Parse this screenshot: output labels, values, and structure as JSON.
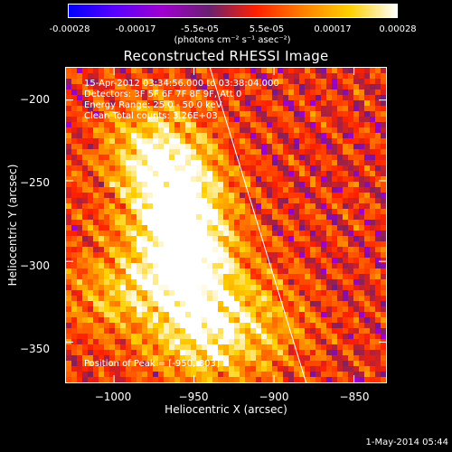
{
  "colorbar": {
    "ticks": [
      "-0.00028",
      "-0.00017",
      "-5.5e-05",
      "5.5e-05",
      "0.00017",
      "0.00028"
    ],
    "unit_label": "(photons cm⁻² s⁻¹ asec⁻²)",
    "colormap": [
      "#0000ff",
      "#5a00ff",
      "#a000d0",
      "#6a2070",
      "#ff2000",
      "#ff8000",
      "#ffd000",
      "#ffffff"
    ]
  },
  "annotations": {
    "time_range": "15-Apr-2012 03:34:56.000 to 03:38:04.000",
    "detectors": "Detectors: 3F 5F 6F 7F 8F 9F, Att 0",
    "energy_range": "Energy Range: 25.0 - 50.0 keV",
    "clean_counts": "Clean     Total counts: 3.26E+03",
    "peak_position": "Position of Peak = [-950,-303]"
  },
  "timestamp": "1-May-2014 05:44",
  "chart_data": {
    "type": "heatmap",
    "title": "Reconstructed RHESSI Image",
    "xlabel": "Heliocentric X (arcsec)",
    "ylabel": "Heliocentric Y (arcsec)",
    "xlim": [
      -1030,
      -830
    ],
    "ylim": [
      -375,
      -180
    ],
    "x_ticks": [
      -1000,
      -950,
      -900,
      -850
    ],
    "y_ticks": [
      -200,
      -250,
      -300,
      -350
    ],
    "x_tick_labels": [
      "−1000",
      "−950",
      "−900",
      "−850"
    ],
    "y_tick_labels": [
      "−200",
      "−250",
      "−300",
      "−350"
    ],
    "clim": [
      -0.00028,
      0.00028
    ],
    "peak": [
      -950,
      -303
    ],
    "limb_line": [
      [
        -940,
        -180
      ],
      [
        -880,
        -375
      ]
    ],
    "emission_sources": [
      {
        "x": -955,
        "y": -300,
        "intensity": 0.00028
      },
      {
        "x": -960,
        "y": -260,
        "intensity": 0.00022
      },
      {
        "x": -975,
        "y": -230,
        "intensity": 0.00018
      },
      {
        "x": -945,
        "y": -345,
        "intensity": 0.0002
      },
      {
        "x": -1000,
        "y": -320,
        "intensity": 0.00012
      },
      {
        "x": -905,
        "y": -340,
        "intensity": 0.0001
      }
    ]
  }
}
